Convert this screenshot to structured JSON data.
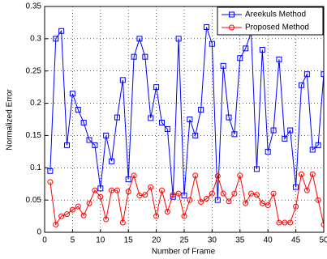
{
  "chart_data": {
    "type": "line",
    "xlabel": "Number of Frame",
    "ylabel": "Normalized Error",
    "x": [
      1,
      2,
      3,
      4,
      5,
      6,
      7,
      8,
      9,
      10,
      11,
      12,
      13,
      14,
      15,
      16,
      17,
      18,
      19,
      20,
      21,
      22,
      23,
      24,
      25,
      26,
      27,
      28,
      29,
      30,
      31,
      32,
      33,
      34,
      35,
      36,
      37,
      38,
      39,
      40,
      41,
      42,
      43,
      44,
      45,
      46,
      47,
      48,
      49,
      50
    ],
    "series": [
      {
        "name": "Areekuls Method",
        "color": "#0000ff",
        "marker": "square",
        "values": [
          0.095,
          0.3,
          0.312,
          0.135,
          0.215,
          0.19,
          0.17,
          0.143,
          0.135,
          0.068,
          0.15,
          0.11,
          0.178,
          0.236,
          0.082,
          0.272,
          0.3,
          0.272,
          0.177,
          0.225,
          0.17,
          0.16,
          0.055,
          0.3,
          0.057,
          0.175,
          0.15,
          0.19,
          0.318,
          0.292,
          0.05,
          0.258,
          0.178,
          0.152,
          0.27,
          0.285,
          0.31,
          0.098,
          0.283,
          0.125,
          0.158,
          0.268,
          0.145,
          0.158,
          0.07,
          0.228,
          0.245,
          0.128,
          0.135,
          0.245
        ]
      },
      {
        "name": "Proposed Method",
        "color": "#ff0000",
        "marker": "circle",
        "values": [
          0.078,
          0.012,
          0.025,
          0.028,
          0.035,
          0.04,
          0.026,
          0.045,
          0.065,
          0.055,
          0.02,
          0.065,
          0.065,
          0.015,
          0.063,
          0.088,
          0.057,
          0.058,
          0.07,
          0.025,
          0.065,
          0.032,
          0.058,
          0.06,
          0.025,
          0.05,
          0.088,
          0.047,
          0.052,
          0.06,
          0.087,
          0.06,
          0.048,
          0.06,
          0.088,
          0.045,
          0.06,
          0.058,
          0.045,
          0.042,
          0.06,
          0.015,
          0.015,
          0.015,
          0.04,
          0.09,
          0.065,
          0.09,
          0.05,
          0.012
        ]
      }
    ],
    "xlim": [
      0,
      50
    ],
    "xticks": [
      0,
      5,
      10,
      15,
      20,
      25,
      30,
      35,
      40,
      45,
      50
    ],
    "ylim": [
      0,
      0.35
    ],
    "yticks": [
      0,
      0.05,
      0.1,
      0.15,
      0.2,
      0.25,
      0.3,
      0.35
    ],
    "grid": true,
    "legend": "northeast"
  }
}
